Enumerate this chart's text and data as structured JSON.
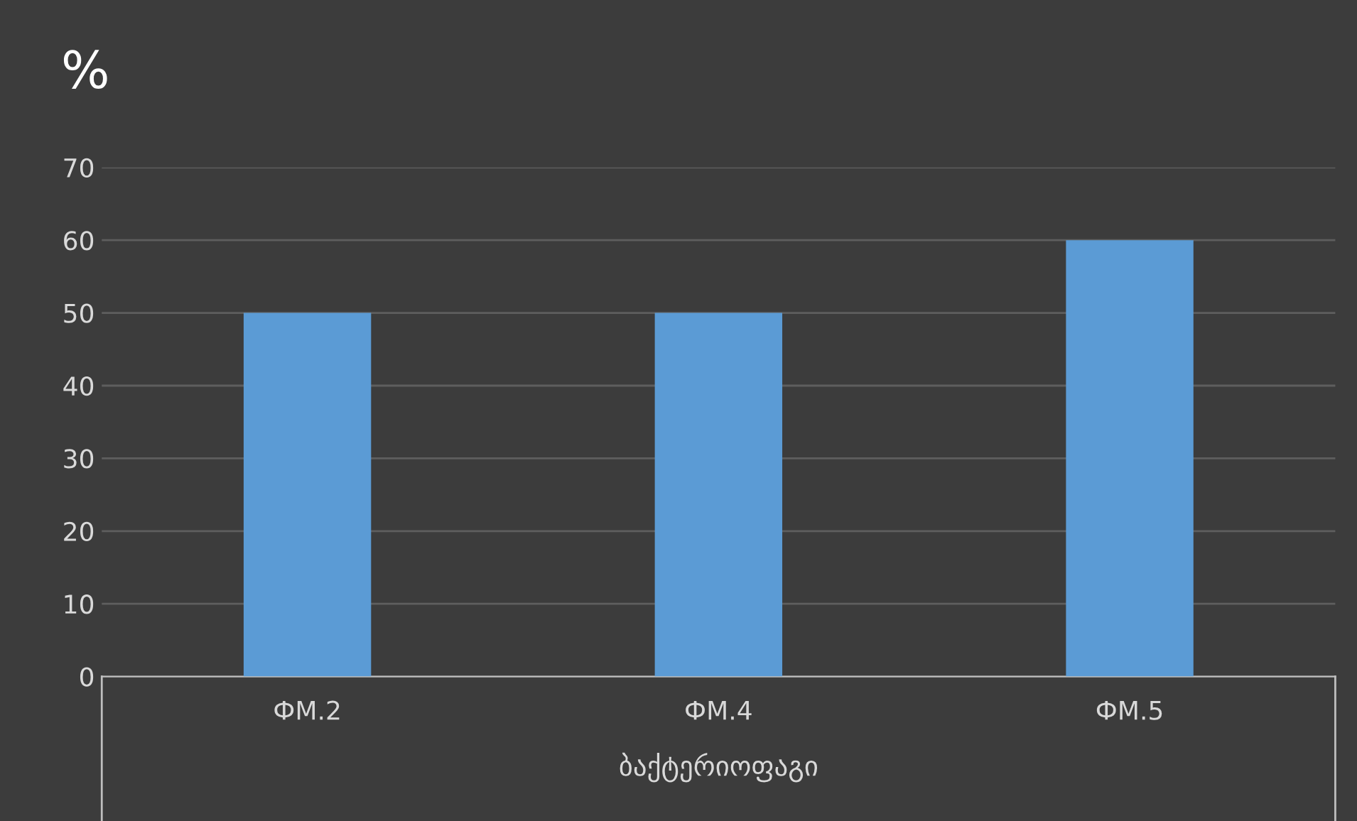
{
  "chart_data": {
    "type": "bar",
    "title": "%",
    "xlabel": "ბაქტერიოფაგი",
    "categories": [
      "ФМ.2",
      "ФМ.4",
      "ФМ.5"
    ],
    "values": [
      50,
      50,
      60
    ],
    "color": "#5b9bd5",
    "ylim": [
      0,
      70
    ],
    "yticks": [
      0,
      10,
      20,
      30,
      40,
      50,
      60,
      70
    ],
    "grid": "y",
    "legend": false
  }
}
